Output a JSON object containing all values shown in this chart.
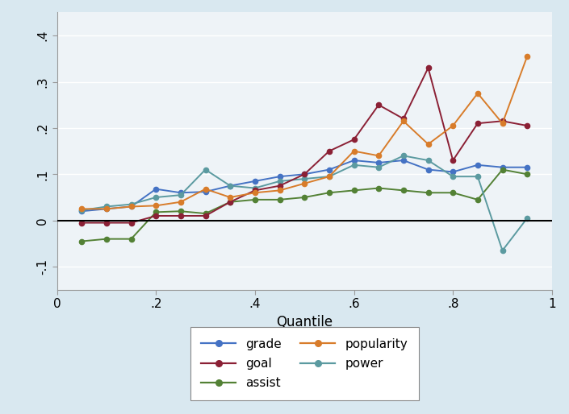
{
  "quantiles": [
    0.05,
    0.1,
    0.15,
    0.2,
    0.25,
    0.3,
    0.35,
    0.4,
    0.45,
    0.5,
    0.55,
    0.6,
    0.65,
    0.7,
    0.75,
    0.8,
    0.85,
    0.9,
    0.95
  ],
  "grade": [
    0.02,
    0.025,
    0.03,
    0.068,
    0.06,
    0.062,
    0.075,
    0.085,
    0.095,
    0.1,
    0.11,
    0.13,
    0.125,
    0.13,
    0.11,
    0.105,
    0.12,
    0.115,
    0.115
  ],
  "assist": [
    -0.045,
    -0.04,
    -0.04,
    0.018,
    0.02,
    0.015,
    0.04,
    0.045,
    0.045,
    0.05,
    0.06,
    0.065,
    0.07,
    0.065,
    0.06,
    0.06,
    0.045,
    0.11,
    0.1
  ],
  "power": [
    0.022,
    0.03,
    0.035,
    0.05,
    0.055,
    0.11,
    0.075,
    0.07,
    0.085,
    0.09,
    0.095,
    0.12,
    0.115,
    0.14,
    0.13,
    0.095,
    0.095,
    -0.065,
    0.005
  ],
  "goal": [
    -0.005,
    -0.005,
    -0.005,
    0.01,
    0.01,
    0.01,
    0.04,
    0.065,
    0.075,
    0.1,
    0.15,
    0.175,
    0.25,
    0.22,
    0.33,
    0.13,
    0.21,
    0.215,
    0.205
  ],
  "popularity": [
    0.025,
    0.025,
    0.03,
    0.032,
    0.04,
    0.068,
    0.05,
    0.06,
    0.065,
    0.08,
    0.095,
    0.15,
    0.14,
    0.215,
    0.165,
    0.205,
    0.275,
    0.21,
    0.355
  ],
  "colors": {
    "grade": "#4472c4",
    "assist": "#538135",
    "power": "#5b9aa0",
    "goal": "#8b2035",
    "popularity": "#d87c2a"
  },
  "xlabel": "Quantile",
  "ylim": [
    -0.15,
    0.45
  ],
  "xlim": [
    0.0,
    1.0
  ],
  "yticks": [
    -0.1,
    0.0,
    0.1,
    0.2,
    0.3,
    0.4
  ],
  "yticklabels": [
    "-.1",
    "0",
    ".1",
    ".2",
    ".3",
    ".4"
  ],
  "xticks": [
    0.0,
    0.2,
    0.4,
    0.6,
    0.8,
    1.0
  ],
  "xticklabels": [
    "0",
    ".2",
    ".4",
    ".6",
    ".8",
    "1"
  ],
  "background_color": "#d9e8f0",
  "plot_background": "#eef3f7",
  "grid_color": "#ffffff",
  "legend_order": [
    "grade",
    "goal",
    "assist",
    "popularity",
    "power"
  ]
}
